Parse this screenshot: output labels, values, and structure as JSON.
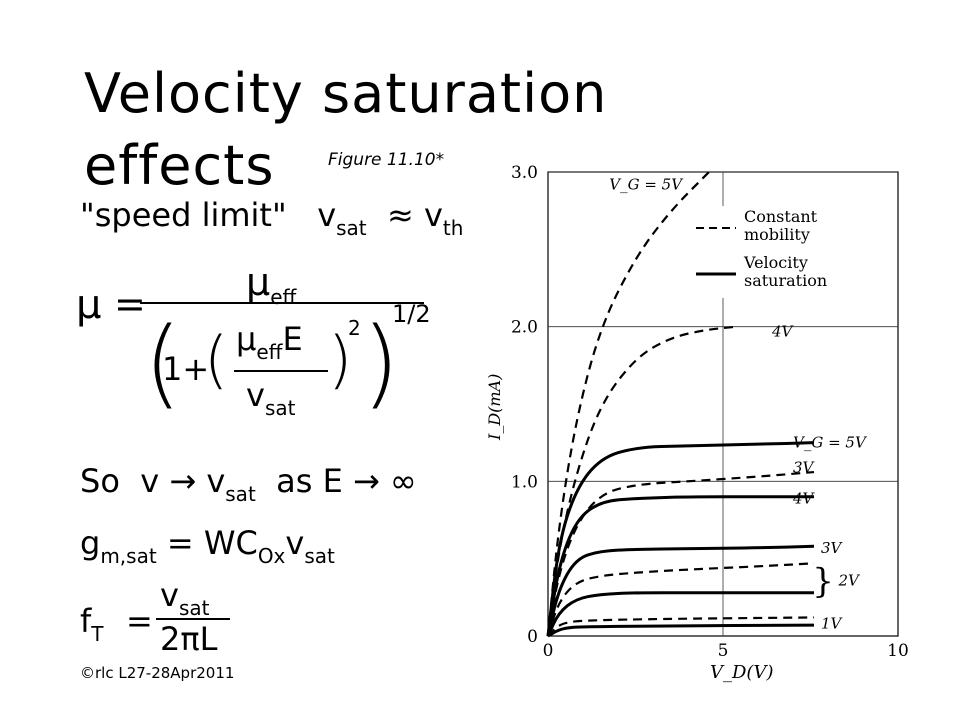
{
  "slide": {
    "title_line1": "Velocity saturation",
    "title_line2": "effects",
    "figure_caption": "Figure 11.10*",
    "footer": "©rlc L27-28Apr2011"
  },
  "equations": {
    "speed_limit_label": "\"speed limit\"",
    "v": "v",
    "sat": "sat",
    "approx": "≈",
    "th": "th",
    "mu": "μ",
    "equals": "=",
    "eff": "eff",
    "one_plus": "1+",
    "E": "E",
    "exp2": "2",
    "exp_half": "1/2",
    "so": "So",
    "arrow": "→",
    "as": "as",
    "infinity": "∞",
    "g": "g",
    "m_sat": "m,sat",
    "W": "W",
    "C": "C",
    "ox": "Ox",
    "f": "f",
    "T": "T",
    "two_pi_L": "2πL"
  },
  "chart_data": {
    "type": "line",
    "xlabel": "V_D(V)",
    "ylabel": "I_D(mA)",
    "xlim": [
      0,
      10
    ],
    "ylim": [
      0,
      3.0
    ],
    "x_ticks": [
      0,
      5,
      10
    ],
    "y_ticks": [
      1.0,
      2.0,
      3.0
    ],
    "grid": true,
    "legend": [
      {
        "label": "Constant mobility",
        "style": "dashed"
      },
      {
        "label": "Velocity saturation",
        "style": "solid"
      }
    ],
    "series": [
      {
        "style": "dashed",
        "points": [
          [
            0,
            0
          ],
          [
            0.3,
            0.7
          ],
          [
            0.8,
            1.4
          ],
          [
            1.5,
            2.0
          ],
          [
            2.5,
            2.45
          ],
          [
            3.5,
            2.75
          ],
          [
            4.6,
            3.0
          ]
        ]
      },
      {
        "style": "dashed",
        "points": [
          [
            0,
            0
          ],
          [
            0.3,
            0.55
          ],
          [
            0.8,
            1.05
          ],
          [
            1.5,
            1.5
          ],
          [
            2.5,
            1.8
          ],
          [
            3.5,
            1.93
          ],
          [
            4.5,
            1.98
          ],
          [
            5.4,
            2.0
          ]
        ]
      },
      {
        "style": "dashed",
        "points": [
          [
            0,
            0
          ],
          [
            0.3,
            0.4
          ],
          [
            0.8,
            0.72
          ],
          [
            1.5,
            0.92
          ],
          [
            2.5,
            0.98
          ],
          [
            4,
            1.0
          ],
          [
            6,
            1.03
          ],
          [
            7.6,
            1.06
          ]
        ]
      },
      {
        "style": "dashed",
        "points": [
          [
            0,
            0
          ],
          [
            0.3,
            0.22
          ],
          [
            0.8,
            0.35
          ],
          [
            1.5,
            0.39
          ],
          [
            2.5,
            0.41
          ],
          [
            4,
            0.43
          ],
          [
            6,
            0.45
          ],
          [
            7.6,
            0.47
          ]
        ]
      },
      {
        "style": "dashed",
        "points": [
          [
            0,
            0
          ],
          [
            0.3,
            0.07
          ],
          [
            0.6,
            0.09
          ],
          [
            1,
            0.1
          ],
          [
            3,
            0.11
          ],
          [
            7.6,
            0.12
          ]
        ]
      },
      {
        "style": "solid",
        "points": [
          [
            0,
            0
          ],
          [
            0.3,
            0.6
          ],
          [
            0.8,
            0.95
          ],
          [
            1.5,
            1.15
          ],
          [
            2.5,
            1.22
          ],
          [
            4,
            1.23
          ],
          [
            6,
            1.24
          ],
          [
            7.6,
            1.25
          ]
        ]
      },
      {
        "style": "solid",
        "points": [
          [
            0,
            0
          ],
          [
            0.3,
            0.45
          ],
          [
            0.8,
            0.75
          ],
          [
            1.5,
            0.87
          ],
          [
            2.5,
            0.89
          ],
          [
            4,
            0.9
          ],
          [
            6,
            0.9
          ],
          [
            7.6,
            0.9
          ]
        ]
      },
      {
        "style": "solid",
        "points": [
          [
            0,
            0
          ],
          [
            0.3,
            0.3
          ],
          [
            0.8,
            0.5
          ],
          [
            1.5,
            0.55
          ],
          [
            2.5,
            0.56
          ],
          [
            4,
            0.565
          ],
          [
            6,
            0.57
          ],
          [
            7.6,
            0.58
          ]
        ]
      },
      {
        "style": "solid",
        "points": [
          [
            0,
            0
          ],
          [
            0.3,
            0.15
          ],
          [
            0.8,
            0.24
          ],
          [
            1.5,
            0.27
          ],
          [
            2.5,
            0.28
          ],
          [
            4,
            0.28
          ],
          [
            7.6,
            0.28
          ]
        ]
      },
      {
        "style": "solid",
        "points": [
          [
            0,
            0
          ],
          [
            0.3,
            0.04
          ],
          [
            0.6,
            0.055
          ],
          [
            1,
            0.06
          ],
          [
            3,
            0.065
          ],
          [
            7.6,
            0.07
          ]
        ]
      }
    ],
    "curve_labels": [
      {
        "text": "V_G = 5V",
        "x": 1.75,
        "y": 2.92
      },
      {
        "text": "4V",
        "x": 6.4,
        "y": 1.97
      },
      {
        "text": "V_G = 5V",
        "x": 7.0,
        "y": 1.25
      },
      {
        "text": "3V",
        "x": 7.0,
        "y": 1.09
      },
      {
        "text": "4V",
        "x": 7.0,
        "y": 0.89
      },
      {
        "text": "3V",
        "x": 7.8,
        "y": 0.57
      },
      {
        "text": "2V",
        "x": 8.3,
        "y": 0.36
      },
      {
        "text": "1V",
        "x": 7.8,
        "y": 0.08
      }
    ]
  }
}
